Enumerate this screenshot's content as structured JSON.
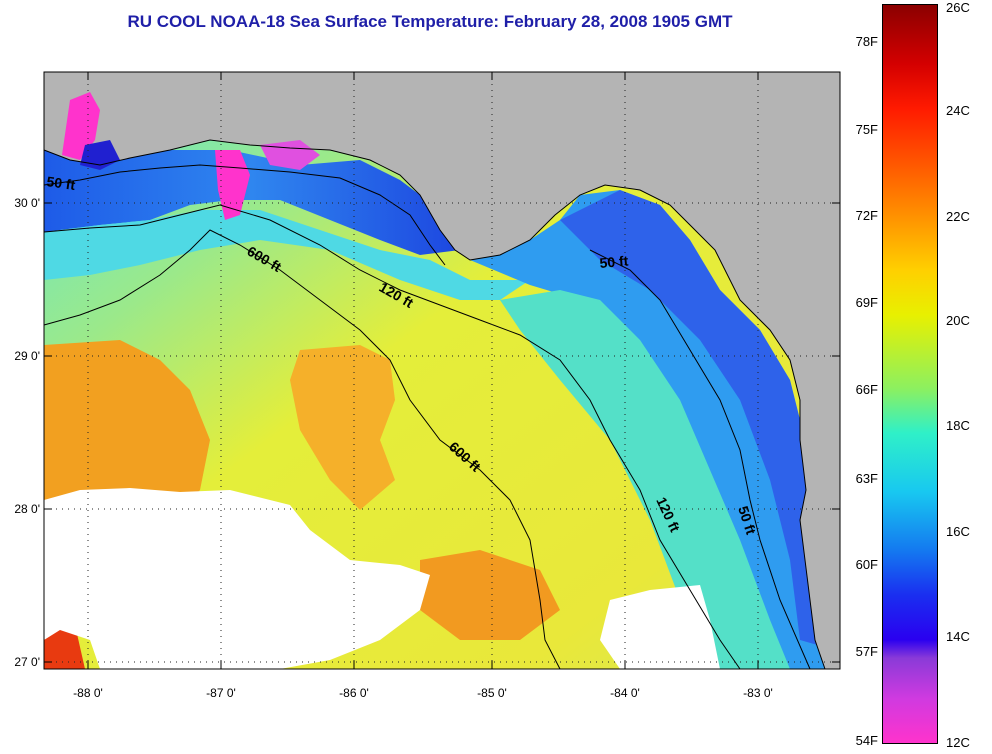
{
  "title": "RU COOL  NOAA-18  Sea Surface Temperature:  February 28, 2008 1905 GMT",
  "lat_labels": [
    "30 0'",
    "29 0'",
    "28 0'",
    "27 0'"
  ],
  "lon_labels": [
    "-88 0'",
    "-87 0'",
    "-86 0'",
    "-85 0'",
    "-84 0'",
    "-83 0'"
  ],
  "contour_labels": [
    "50 ft",
    "600 ft",
    "120 ft",
    "50 ft",
    "600 ft",
    "120 ft",
    "50 ft"
  ],
  "colorbar": {
    "fahrenheit_labels": [
      "78F",
      "75F",
      "72F",
      "69F",
      "66F",
      "63F",
      "60F",
      "57F",
      "54F"
    ],
    "celsius_labels": [
      "26C",
      "24C",
      "22C",
      "20C",
      "18C",
      "16C",
      "14C",
      "12C"
    ]
  },
  "colors": {
    "land": "#b4b4b4",
    "cloud": "#ffffff",
    "title": "#1f1fa8",
    "scale_top": "#8b0000",
    "scale_bottom": "#ff33cc"
  }
}
